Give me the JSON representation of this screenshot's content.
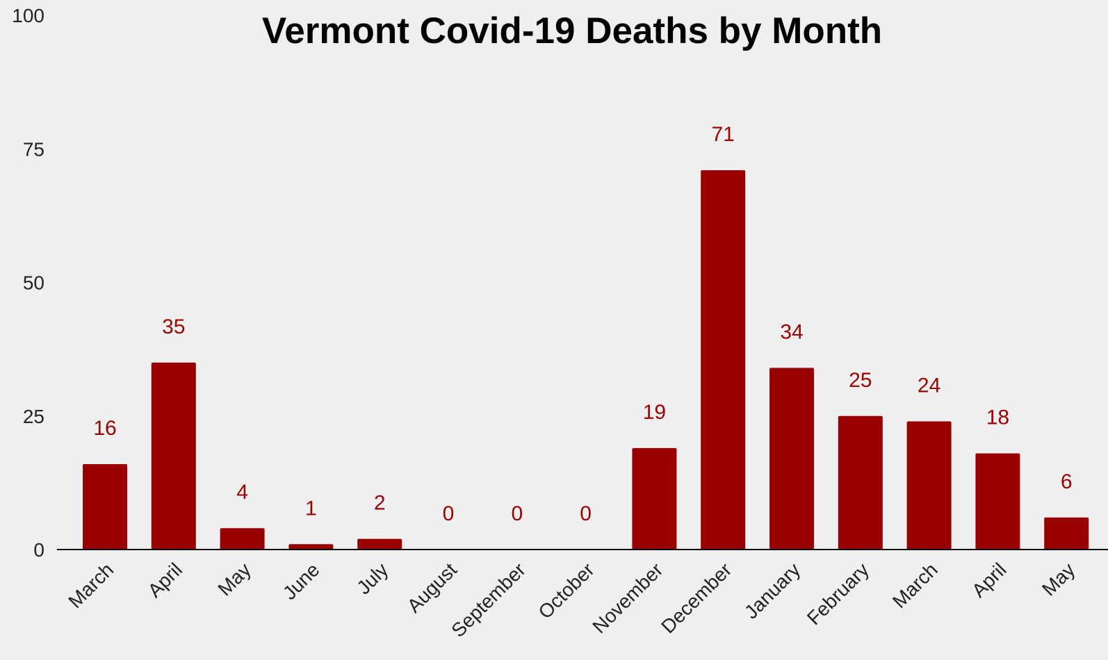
{
  "chart_data": {
    "type": "bar",
    "title": "Vermont Covid-19 Deaths by Month",
    "xlabel": "",
    "ylabel": "",
    "ylim": [
      0,
      100
    ],
    "yticks": [
      "0",
      "25",
      "50",
      "75",
      "100"
    ],
    "categories": [
      "March",
      "April",
      "May",
      "June",
      "July",
      "August",
      "September",
      "October",
      "November",
      "December",
      "January",
      "February",
      "March",
      "April",
      "May"
    ],
    "values": [
      16,
      35,
      4,
      1,
      2,
      0,
      0,
      0,
      19,
      71,
      34,
      25,
      24,
      18,
      6
    ],
    "data_labels": [
      "16",
      "35",
      "4",
      "1",
      "2",
      "0",
      "0",
      "0",
      "19",
      "71",
      "34",
      "25",
      "24",
      "18",
      "6"
    ],
    "grid": false,
    "legend": "none",
    "colors": {
      "bar": "#990000",
      "data_label": "#990000",
      "axis": "#000000",
      "tick_label": "#222222",
      "title": "#000000",
      "background": "#efefef"
    }
  }
}
